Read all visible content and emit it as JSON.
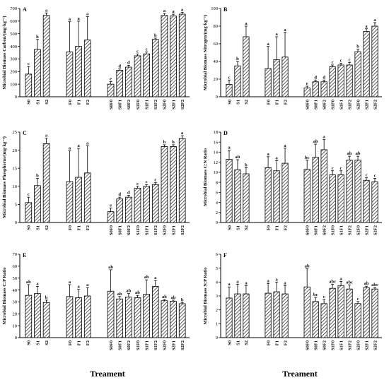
{
  "chart_data": [
    {
      "type": "bar",
      "panel": "A",
      "ylabel": "Microbial Biomass Carbon/(mg·kg⁻¹)",
      "ylim": [
        0,
        700
      ],
      "yticks": [
        0,
        100,
        200,
        300,
        400,
        500,
        600,
        700
      ],
      "groups": [
        {
          "categories": [
            "S0",
            "S1",
            "S2"
          ],
          "values": [
            180,
            375,
            645
          ],
          "errors": [
            60,
            80,
            20
          ],
          "letters": [
            "c",
            "b",
            "a"
          ]
        },
        {
          "categories": [
            "F0",
            "F1",
            "F2"
          ],
          "values": [
            355,
            400,
            450
          ],
          "errors": [
            240,
            200,
            185
          ],
          "letters": [
            "a",
            "a",
            "a"
          ]
        },
        {
          "categories": [
            "S0F0",
            "S0F1",
            "S0F2",
            "S1F0",
            "S1F1",
            "S1F2",
            "S2F0",
            "S2F1",
            "S2F2"
          ],
          "values": [
            100,
            210,
            235,
            325,
            340,
            455,
            645,
            640,
            655
          ],
          "errors": [
            20,
            10,
            15,
            15,
            15,
            10,
            15,
            15,
            15
          ],
          "letters": [
            "e",
            "d",
            "d",
            "c",
            "c",
            "b",
            "a",
            "a",
            "a"
          ]
        }
      ]
    },
    {
      "type": "bar",
      "panel": "B",
      "ylabel": "Microbial Biomass Nitrogen/(mg·kg⁻¹)",
      "ylim": [
        0,
        100
      ],
      "yticks": [
        0,
        20,
        40,
        60,
        80,
        100
      ],
      "groups": [
        {
          "categories": [
            "S0",
            "S1",
            "S2"
          ],
          "values": [
            14,
            35,
            68
          ],
          "errors": [
            5,
            5,
            12
          ],
          "letters": [
            "c",
            "b",
            "a"
          ]
        },
        {
          "categories": [
            "F0",
            "F1",
            "F2"
          ],
          "values": [
            32,
            42,
            45
          ],
          "errors": [
            25,
            26,
            28
          ],
          "letters": [
            "a",
            "a",
            "a"
          ]
        },
        {
          "categories": [
            "S0F0",
            "S0F1",
            "S0F2",
            "S1F0",
            "S1F1",
            "S1F2",
            "S2F0",
            "S2F1",
            "S2F2"
          ],
          "values": [
            10,
            17,
            17,
            34,
            36,
            36,
            51,
            74,
            80
          ],
          "errors": [
            2,
            2,
            2,
            2,
            2,
            3,
            3,
            3,
            4
          ],
          "letters": [
            "e",
            "d",
            "d",
            "c",
            "c",
            "c",
            "b",
            "a",
            "a"
          ]
        }
      ]
    },
    {
      "type": "bar",
      "panel": "C",
      "ylabel": "Microbial Biomass Phosphorus/(mg·kg⁻¹)",
      "ylim": [
        0,
        25
      ],
      "yticks": [
        0,
        5,
        10,
        15,
        20,
        25
      ],
      "groups": [
        {
          "categories": [
            "S0",
            "S1",
            "S2"
          ],
          "values": [
            5.5,
            10.2,
            21.8
          ],
          "errors": [
            1.5,
            2.0,
            1.5
          ],
          "letters": [
            "c",
            "b",
            "a"
          ]
        },
        {
          "categories": [
            "F0",
            "F1",
            "F2"
          ],
          "values": [
            11.3,
            12.5,
            13.7
          ],
          "errors": [
            8.5,
            8.0,
            7.5
          ],
          "letters": [
            "a",
            "a",
            "a"
          ]
        },
        {
          "categories": [
            "S0F0",
            "S0F1",
            "S0F2",
            "S1F0",
            "S1F1",
            "S1F2",
            "S2F0",
            "S2F1",
            "S2F2"
          ],
          "values": [
            3.0,
            6.5,
            7.0,
            9.5,
            10.0,
            10.5,
            21.0,
            21.0,
            23.2
          ],
          "errors": [
            1.0,
            0.5,
            0.5,
            0.5,
            0.5,
            0.5,
            0.5,
            0.5,
            0.8
          ],
          "letters": [
            "e",
            "d",
            "d",
            "c",
            "c",
            "c",
            "b",
            "b",
            "a"
          ]
        }
      ]
    },
    {
      "type": "bar",
      "panel": "D",
      "ylabel": "Microbial Biomass C:N Ratio",
      "ylim": [
        0,
        18
      ],
      "yticks": [
        0,
        2,
        4,
        6,
        8,
        10,
        12,
        14,
        16,
        18
      ],
      "groups": [
        {
          "categories": [
            "S0",
            "S1",
            "S2"
          ],
          "values": [
            12.6,
            10.5,
            9.7
          ],
          "errors": [
            1.8,
            2.0,
            1.2
          ],
          "letters": [
            "a",
            "ab",
            "b"
          ]
        },
        {
          "categories": [
            "F0",
            "F1",
            "F2"
          ],
          "values": [
            10.9,
            10.3,
            11.8
          ],
          "errors": [
            2.2,
            2.0,
            3.0
          ],
          "letters": [
            "a",
            "a",
            "a"
          ]
        },
        {
          "categories": [
            "S0F0",
            "S0F1",
            "S0F2",
            "S1F0",
            "S1F1",
            "S1F2",
            "S2F0",
            "S2F1",
            "S2F2"
          ],
          "values": [
            10.6,
            13.0,
            14.5,
            9.5,
            9.5,
            12.4,
            12.4,
            8.4,
            8.1
          ],
          "errors": [
            1.8,
            2.6,
            2.0,
            0.8,
            0.8,
            0.8,
            0.8,
            0.5,
            0.7
          ],
          "letters": [
            "bc",
            "ab",
            "a",
            "c",
            "c",
            "ab",
            "ab",
            "c",
            "c"
          ]
        }
      ]
    },
    {
      "type": "bar",
      "panel": "E",
      "ylabel": "Microbial Biomass C:P Ratio",
      "ylim": [
        0,
        70
      ],
      "yticks": [
        0,
        10,
        20,
        30,
        40,
        50,
        60,
        70
      ],
      "groups": [
        {
          "categories": [
            "S0",
            "S1",
            "S2"
          ],
          "values": [
            35.5,
            37.0,
            29.5
          ],
          "errors": [
            9,
            6,
            2
          ],
          "letters": [
            "ab",
            "a",
            "b"
          ]
        },
        {
          "categories": [
            "F0",
            "F1",
            "F2"
          ],
          "values": [
            34.5,
            33.5,
            35.0
          ],
          "errors": [
            10,
            7,
            7
          ],
          "letters": [
            "a",
            "a",
            "a"
          ]
        },
        {
          "categories": [
            "S0F0",
            "S0F1",
            "S0F2",
            "S1F0",
            "S1F1",
            "S1F2",
            "S2F0",
            "S2F1",
            "S2F2"
          ],
          "values": [
            39,
            32.5,
            34,
            33.5,
            36.5,
            43,
            31,
            30.5,
            28.5
          ],
          "errors": [
            18,
            2,
            3,
            2,
            12,
            5,
            1,
            1,
            1
          ],
          "letters": [
            "ab",
            "ab",
            "ab",
            "ab",
            "ab",
            "a",
            "ab",
            "ab",
            "b"
          ]
        }
      ]
    },
    {
      "type": "bar",
      "panel": "F",
      "ylabel": "Microbial Biomass N:P Ratio",
      "ylim": [
        0,
        6
      ],
      "yticks": [
        0,
        1,
        2,
        3,
        4,
        5,
        6
      ],
      "groups": [
        {
          "categories": [
            "S0",
            "S1",
            "S2"
          ],
          "values": [
            2.85,
            3.15,
            3.15
          ],
          "errors": [
            0.8,
            0.7,
            0.6
          ],
          "letters": [
            "a",
            "a",
            "a"
          ]
        },
        {
          "categories": [
            "F0",
            "F1",
            "F2"
          ],
          "values": [
            3.2,
            3.3,
            3.15
          ],
          "errors": [
            0.7,
            0.7,
            0.6
          ],
          "letters": [
            "a",
            "a",
            "a"
          ]
        },
        {
          "categories": [
            "S0F0",
            "S0F1",
            "S0F2",
            "S1F0",
            "S1F1",
            "S1F2",
            "S2F0",
            "S2F1",
            "S2F2"
          ],
          "values": [
            3.65,
            2.6,
            2.45,
            3.55,
            3.75,
            3.5,
            2.45,
            3.6,
            3.5
          ],
          "errors": [
            1.3,
            0.3,
            0.3,
            0.3,
            0.3,
            0.3,
            0.15,
            0.1,
            0.1
          ],
          "letters": [
            "ab",
            "bc",
            "c",
            "abc",
            "a",
            "abc",
            "c",
            "ab",
            "abc"
          ]
        }
      ]
    }
  ],
  "x_title": "Treament"
}
